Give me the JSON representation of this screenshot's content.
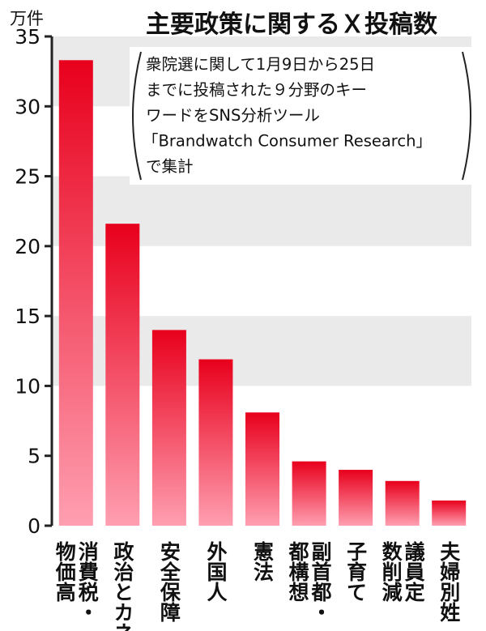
{
  "chart_data": {
    "type": "bar",
    "title": "主要政策に関するＸ投稿数",
    "y_unit": "万件",
    "note": [
      "衆院選に関して1月9日から25日",
      "までに投稿された９分野のキー",
      "ワードをSNS分析ツール",
      "「Brandwatch Consumer Research」",
      "で集計"
    ],
    "categories": [
      "消費税・物価高",
      "政治とカネ",
      "安全保障",
      "外国人",
      "憲法",
      "副首都・都構想",
      "子育て",
      "議員定数削減",
      "夫婦別姓"
    ],
    "category_lines": [
      [
        "消費税・",
        "物価高"
      ],
      [
        "政治とカネ"
      ],
      [
        "安全保障"
      ],
      [
        "外国人"
      ],
      [
        "憲法"
      ],
      [
        "副首都・",
        "都構想"
      ],
      [
        "子育て"
      ],
      [
        "議員定",
        "数削減"
      ],
      [
        "夫婦別姓"
      ]
    ],
    "values": [
      33.3,
      21.6,
      14.0,
      11.9,
      8.1,
      4.6,
      4.0,
      3.2,
      1.8
    ],
    "ylim": [
      0,
      35
    ],
    "yticks": [
      0,
      5,
      10,
      15,
      20,
      25,
      30,
      35
    ],
    "shaded_bands": [
      [
        10,
        15
      ],
      [
        20,
        25
      ],
      [
        30,
        35
      ]
    ],
    "bar_color_top": "#e8001c",
    "bar_color_bottom": "#ff9fb1",
    "band_color": "#eaeaea",
    "axis_color": "#222222"
  }
}
